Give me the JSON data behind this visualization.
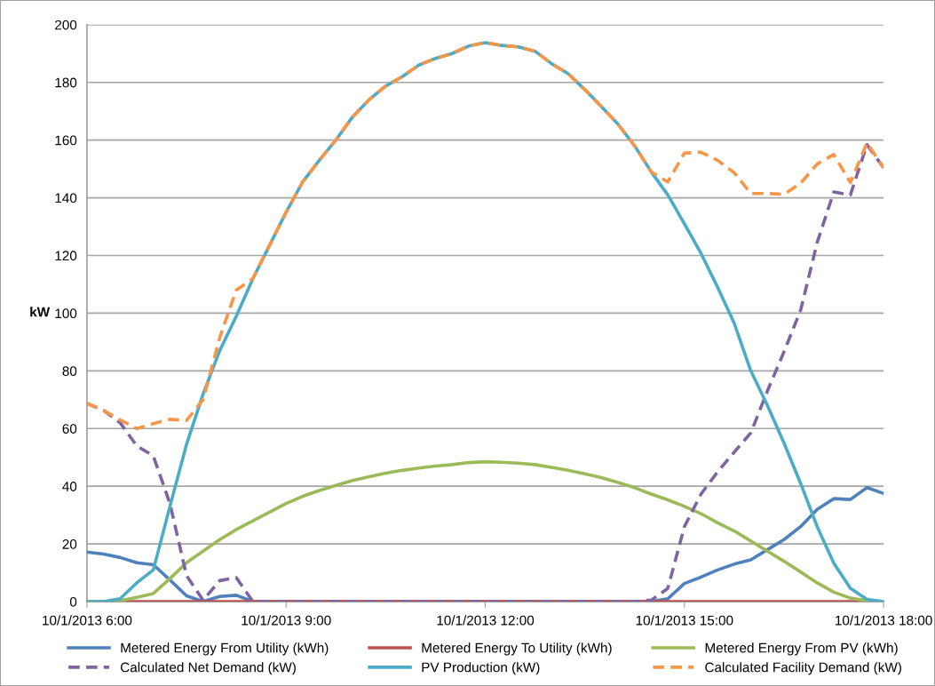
{
  "chart_data": {
    "type": "line",
    "ylabel": "kW",
    "x": [
      "2013-10-01T06:00",
      "2013-10-01T06:15",
      "2013-10-01T06:30",
      "2013-10-01T06:45",
      "2013-10-01T07:00",
      "2013-10-01T07:15",
      "2013-10-01T07:30",
      "2013-10-01T07:45",
      "2013-10-01T08:00",
      "2013-10-01T08:15",
      "2013-10-01T08:30",
      "2013-10-01T08:45",
      "2013-10-01T09:00",
      "2013-10-01T09:15",
      "2013-10-01T09:30",
      "2013-10-01T09:45",
      "2013-10-01T10:00",
      "2013-10-01T10:15",
      "2013-10-01T10:30",
      "2013-10-01T10:45",
      "2013-10-01T11:00",
      "2013-10-01T11:15",
      "2013-10-01T11:30",
      "2013-10-01T11:45",
      "2013-10-01T12:00",
      "2013-10-01T12:15",
      "2013-10-01T12:30",
      "2013-10-01T12:45",
      "2013-10-01T13:00",
      "2013-10-01T13:15",
      "2013-10-01T13:30",
      "2013-10-01T13:45",
      "2013-10-01T14:00",
      "2013-10-01T14:15",
      "2013-10-01T14:30",
      "2013-10-01T14:45",
      "2013-10-01T15:00",
      "2013-10-01T15:15",
      "2013-10-01T15:30",
      "2013-10-01T15:45",
      "2013-10-01T16:00",
      "2013-10-01T16:15",
      "2013-10-01T16:30",
      "2013-10-01T16:45",
      "2013-10-01T17:00",
      "2013-10-01T17:15",
      "2013-10-01T17:30",
      "2013-10-01T17:45",
      "2013-10-01T18:00"
    ],
    "series": [
      {
        "name": "Metered Energy From Utility (kWh)",
        "color": "#4f81bd",
        "line_style": "solid",
        "values": [
          17.2,
          16.5,
          15.3,
          13.5,
          12.8,
          7.5,
          2.0,
          0,
          1.8,
          2.2,
          0,
          0,
          0,
          0,
          0,
          0,
          0,
          0,
          0,
          0,
          0,
          0,
          0,
          0,
          0,
          0,
          0,
          0,
          0,
          0,
          0,
          0,
          0,
          0,
          0,
          1.0,
          6.3,
          8.5,
          11,
          13,
          14.5,
          18,
          21.5,
          26,
          32,
          35.7,
          35.4,
          39.5,
          37.5
        ]
      },
      {
        "name": "Metered Energy To Utility (kWh)",
        "color": "#c0504d",
        "line_style": "solid",
        "values": [
          0,
          0,
          0,
          0,
          0,
          0,
          0,
          0,
          0,
          0,
          0,
          0,
          0,
          0,
          0,
          0,
          0,
          0,
          0,
          0,
          0,
          0,
          0,
          0,
          0,
          0,
          0,
          0,
          0,
          0,
          0,
          0,
          0,
          0,
          0,
          0,
          0,
          0,
          0,
          0,
          0,
          0,
          0,
          0,
          0,
          0,
          0,
          0,
          0
        ]
      },
      {
        "name": "Metered Energy From PV (kWh)",
        "color": "#9bbb59",
        "line_style": "solid",
        "values": [
          0,
          0,
          0.3,
          1.5,
          2.8,
          8,
          13.5,
          17.5,
          21.5,
          25,
          28,
          31,
          34,
          36.5,
          38.5,
          40.3,
          42,
          43.3,
          44.5,
          45.5,
          46.3,
          47,
          47.5,
          48.2,
          48.5,
          48.3,
          48,
          47.5,
          46.5,
          45.5,
          44.3,
          43,
          41.3,
          39.5,
          37.3,
          35.3,
          33,
          30.5,
          27.3,
          24.5,
          21,
          17.5,
          14,
          10.3,
          6.5,
          3.3,
          1.2,
          0.3,
          0
        ]
      },
      {
        "name": "Calculated Net Demand (kW)",
        "color": "#8064a2",
        "line_style": "dashed",
        "values": [
          68.7,
          66.3,
          62,
          54,
          50.5,
          34,
          9,
          0.5,
          7.3,
          8.3,
          0,
          0,
          0,
          0,
          0,
          0,
          0,
          0,
          0,
          0,
          0,
          0,
          0,
          0,
          0,
          0,
          0,
          0,
          0,
          0,
          0,
          0,
          0,
          0,
          0.5,
          4.6,
          26,
          37.3,
          45,
          51.8,
          58.5,
          73,
          86.6,
          101,
          124.5,
          142,
          141,
          158.4,
          150.4
        ]
      },
      {
        "name": "PV Production (kW)",
        "color": "#4bacc6",
        "line_style": "solid",
        "values": [
          0,
          0,
          1,
          6.5,
          11,
          33,
          54.5,
          72,
          87,
          99,
          112,
          123.5,
          135,
          145.5,
          153,
          160,
          168,
          174,
          178.7,
          182,
          186,
          188.3,
          190,
          192.6,
          193.8,
          192.8,
          192.3,
          190.8,
          186.5,
          183,
          177.5,
          171.6,
          165.5,
          158,
          149,
          141,
          131,
          120.7,
          109,
          96.5,
          80,
          68,
          55,
          41,
          26,
          13.3,
          4.6,
          0.8,
          0
        ]
      },
      {
        "name": "Calculated Facility Demand (kW)",
        "color": "#f79646",
        "line_style": "dashed",
        "values": [
          68.7,
          66.3,
          63,
          60,
          61.7,
          63.2,
          62.8,
          70,
          91.5,
          108,
          112,
          123.5,
          135,
          145.5,
          153,
          160,
          168,
          174,
          178.7,
          182,
          186,
          188.3,
          190,
          192.6,
          193.8,
          192.8,
          192.3,
          190.8,
          186.5,
          183,
          177.5,
          171.6,
          165.5,
          158,
          149,
          145.5,
          155.5,
          155.8,
          153,
          148.7,
          141.5,
          141.5,
          141.2,
          145,
          151.7,
          155,
          145.3,
          159,
          150.4
        ]
      }
    ],
    "xlim": [
      "2013-10-01T06:00",
      "2013-10-01T18:00"
    ],
    "xticks": [
      {
        "value": "2013-10-01T06:00",
        "label": "10/1/2013 6:00"
      },
      {
        "value": "2013-10-01T09:00",
        "label": "10/1/2013 9:00"
      },
      {
        "value": "2013-10-01T12:00",
        "label": "10/1/2013 12:00"
      },
      {
        "value": "2013-10-01T15:00",
        "label": "10/1/2013 15:00"
      },
      {
        "value": "2013-10-01T18:00",
        "label": "10/1/2013 18:00"
      }
    ],
    "ylim": [
      0,
      200
    ],
    "yticks": [
      0,
      20,
      40,
      60,
      80,
      100,
      120,
      140,
      160,
      180,
      200
    ],
    "grid": "y",
    "legend": "bottom",
    "marker": "none"
  }
}
